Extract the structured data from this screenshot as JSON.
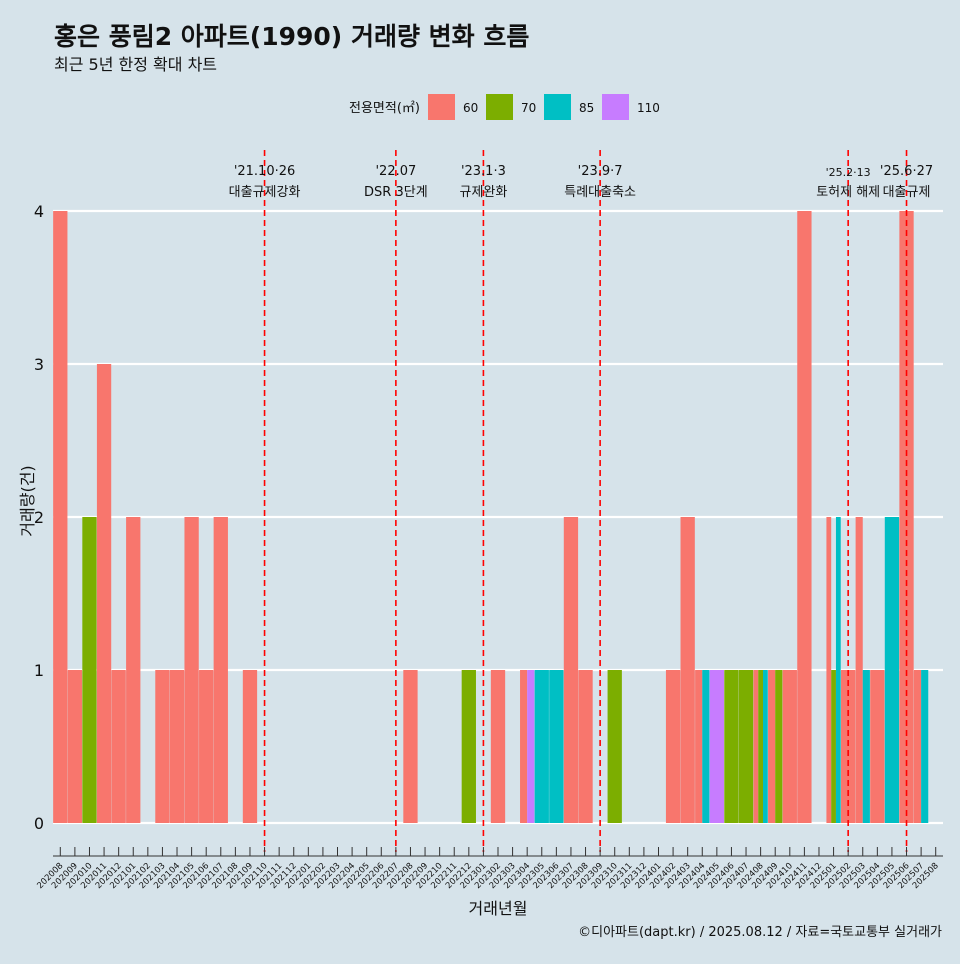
{
  "chart_data": {
    "type": "bar",
    "title": "홍은 풍림2 아파트(1990) 거래량 변화 흐름",
    "subtitle": "최근 5년 한정 확대 차트",
    "xlabel": "거래년월",
    "ylabel": "거래량(건)",
    "legend_title": "전용면적(㎡)",
    "legend_position": "top",
    "caption": "©디아파트(dapt.kr) / 2025.08.12 / 자료=국토교통부 실거래가",
    "ylim": [
      0,
      4
    ],
    "yticks": [
      0,
      1,
      2,
      3,
      4
    ],
    "grid": "horizontal",
    "categories": [
      "202008",
      "202009",
      "202010",
      "202011",
      "202012",
      "202101",
      "202102",
      "202103",
      "202104",
      "202105",
      "202106",
      "202107",
      "202108",
      "202109",
      "202110",
      "202111",
      "202112",
      "202201",
      "202202",
      "202203",
      "202204",
      "202205",
      "202206",
      "202207",
      "202208",
      "202209",
      "202210",
      "202211",
      "202212",
      "202301",
      "202302",
      "202303",
      "202304",
      "202305",
      "202306",
      "202307",
      "202308",
      "202309",
      "202310",
      "202311",
      "202312",
      "202401",
      "202402",
      "202403",
      "202404",
      "202405",
      "202406",
      "202407",
      "202408",
      "202409",
      "202410",
      "202411",
      "202412",
      "202501",
      "202502",
      "202503",
      "202504",
      "202505",
      "202506",
      "202507",
      "202508"
    ],
    "series": [
      {
        "name": "60",
        "color": "#f8766d",
        "values": [
          4,
          1,
          0,
          3,
          1,
          2,
          0,
          1,
          1,
          2,
          1,
          2,
          0,
          1,
          0,
          0,
          0,
          0,
          0,
          0,
          0,
          0,
          0,
          0,
          1,
          0,
          0,
          0,
          0,
          0,
          1,
          0,
          1,
          0,
          0,
          2,
          1,
          0,
          0,
          0,
          0,
          0,
          1,
          2,
          1,
          0,
          0,
          0,
          1,
          1,
          1,
          4,
          0,
          2,
          1,
          2,
          1,
          0,
          4,
          1,
          0
        ]
      },
      {
        "name": "70",
        "color": "#7cae00",
        "values": [
          0,
          0,
          2,
          0,
          0,
          0,
          0,
          0,
          0,
          0,
          0,
          0,
          0,
          0,
          0,
          0,
          0,
          0,
          0,
          0,
          0,
          0,
          0,
          0,
          0,
          0,
          0,
          0,
          1,
          0,
          0,
          0,
          0,
          0,
          0,
          0,
          0,
          0,
          1,
          0,
          0,
          0,
          0,
          0,
          0,
          0,
          1,
          1,
          1,
          1,
          0,
          0,
          0,
          1,
          0,
          0,
          0,
          0,
          0,
          0,
          0
        ]
      },
      {
        "name": "85",
        "color": "#00bfc4",
        "values": [
          0,
          0,
          0,
          0,
          0,
          0,
          0,
          0,
          0,
          0,
          0,
          0,
          0,
          0,
          0,
          0,
          0,
          0,
          0,
          0,
          0,
          0,
          0,
          0,
          0,
          0,
          0,
          0,
          0,
          0,
          0,
          0,
          0,
          1,
          1,
          0,
          0,
          0,
          0,
          0,
          0,
          0,
          0,
          0,
          1,
          0,
          0,
          0,
          1,
          0,
          0,
          0,
          0,
          2,
          0,
          1,
          0,
          2,
          0,
          1,
          0
        ]
      },
      {
        "name": "110",
        "color": "#c77cff",
        "values": [
          0,
          0,
          0,
          0,
          0,
          0,
          0,
          0,
          0,
          0,
          0,
          0,
          0,
          0,
          0,
          0,
          0,
          0,
          0,
          0,
          0,
          0,
          0,
          0,
          0,
          0,
          0,
          0,
          0,
          0,
          0,
          0,
          1,
          0,
          0,
          0,
          0,
          0,
          0,
          0,
          0,
          0,
          0,
          0,
          0,
          1,
          0,
          0,
          0,
          0,
          0,
          0,
          0,
          0,
          0,
          0,
          0,
          0,
          0,
          0,
          0
        ]
      }
    ],
    "events": [
      {
        "at": "202110",
        "date": "'21.10·26",
        "label": "대출규제강화",
        "small": false
      },
      {
        "at": "202207",
        "date": "'22.07",
        "label": "DSR 3단계",
        "small": false
      },
      {
        "at": "202301",
        "date": "'23.1·3",
        "label": "규제완화",
        "small": false
      },
      {
        "at": "202309",
        "date": "'23.9·7",
        "label": "특례대출축소",
        "small": false
      },
      {
        "at": "202502",
        "date": "'25.2·13",
        "label": "토허제 해제",
        "small": true
      },
      {
        "at": "202506",
        "date": "'25.6·27",
        "label": "대출규제",
        "small": false
      }
    ]
  }
}
